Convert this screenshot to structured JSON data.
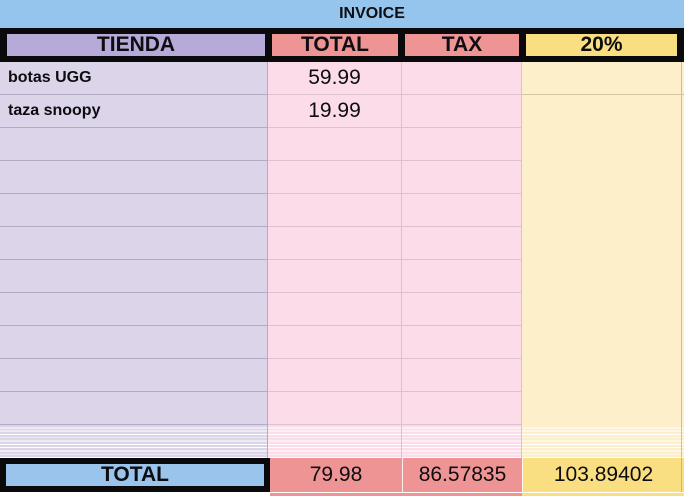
{
  "title": "INVOICE",
  "columns": {
    "tienda": "TIENDA",
    "total": "TOTAL",
    "tax": "TAX",
    "pct": "20%"
  },
  "items": [
    {
      "tienda": "botas UGG",
      "total": "59.99",
      "tax": "",
      "pct": ""
    },
    {
      "tienda": "taza snoopy",
      "total": "19.99",
      "tax": "",
      "pct": ""
    }
  ],
  "empty_row_count": 9,
  "condensed_row_count": 10,
  "totals": {
    "label": "TOTAL",
    "total": "79.98",
    "tax": "86.57835",
    "pct": "103.89402"
  },
  "colors": {
    "title_bar_blue": "#95C5EC",
    "header_purple": "#B7AAD8",
    "header_salmon": "#EF9494",
    "header_yellow": "#FADE82",
    "body_purple": "#DCD5E9",
    "body_pink": "#FBDCE8",
    "body_yellow": "#FCEFC9",
    "total_blue": "#9AC4EC",
    "grid_purple": "#B4AAC6",
    "grid_pink": "#DCC2D0",
    "grid_yellow": "#D6C89F",
    "border_black": "#0A0A0C"
  }
}
